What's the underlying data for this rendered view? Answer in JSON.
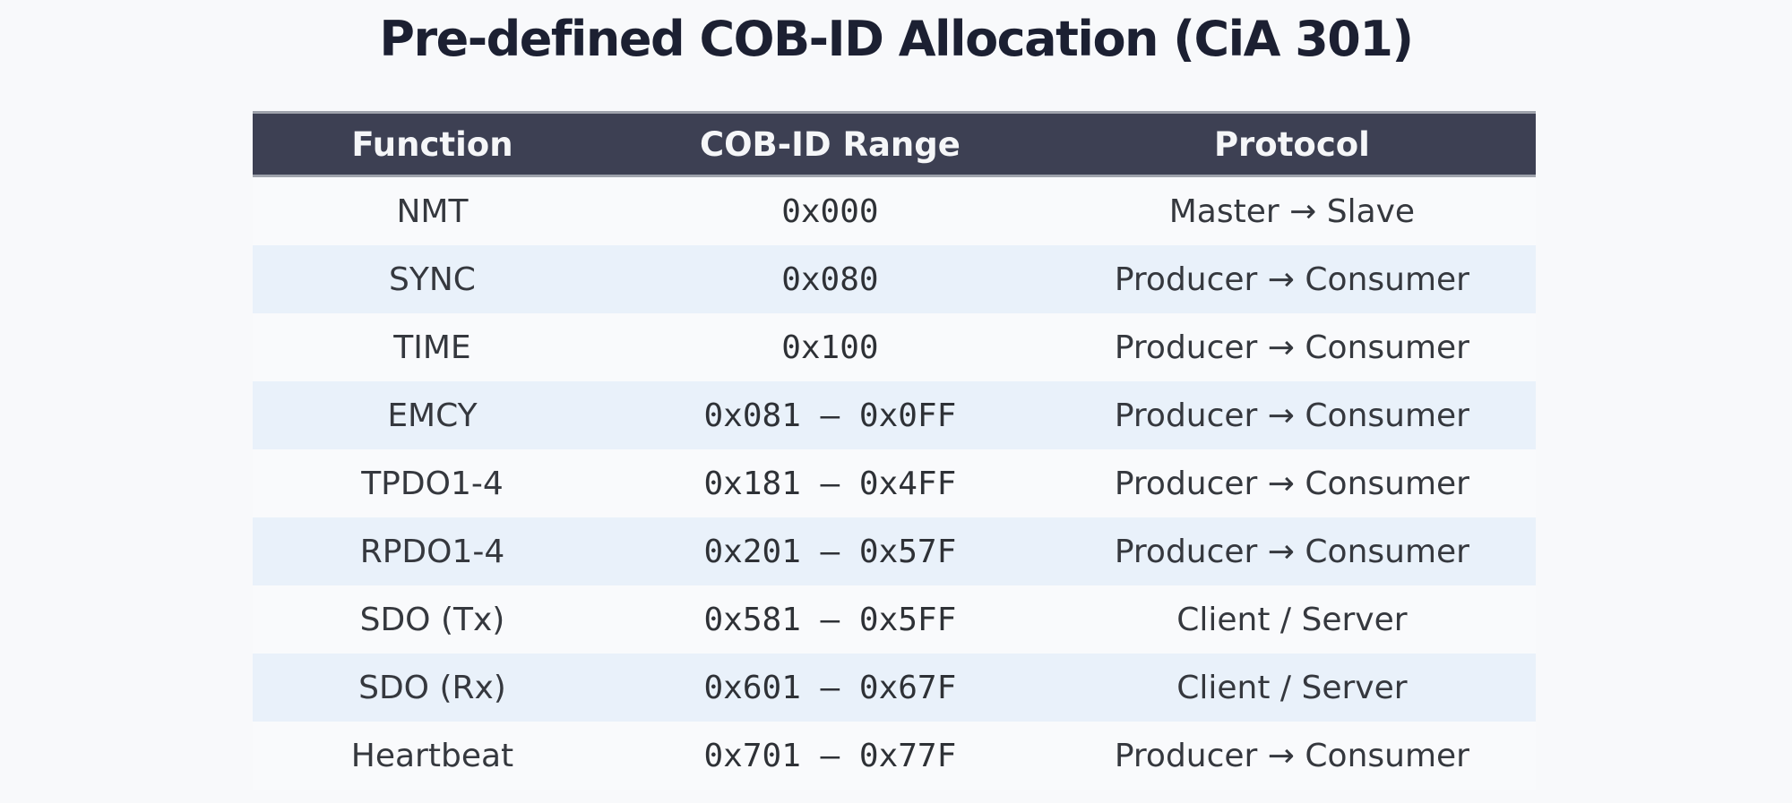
{
  "title": "Pre-defined COB-ID Allocation (CiA 301)",
  "style": {
    "page_bg": "#f8f9fb",
    "title_color": "#1c2032",
    "header_bg": "#3d4053",
    "header_text": "#f5f6f8",
    "header_border": "#9fa3ac",
    "row_bg": "#f9fafc",
    "row_alt_bg": "#e9f1fa",
    "body_text": "#35383e",
    "mono_text": "#2e3136"
  },
  "chart_data": {
    "type": "table",
    "title": "Pre-defined COB-ID Allocation (CiA 301)",
    "columns": [
      "Function",
      "COB-ID Range",
      "Protocol"
    ],
    "rows": [
      [
        "NMT",
        "0x000",
        "Master → Slave"
      ],
      [
        "SYNC",
        "0x080",
        "Producer → Consumer"
      ],
      [
        "TIME",
        "0x100",
        "Producer → Consumer"
      ],
      [
        "EMCY",
        "0x081 — 0x0FF",
        "Producer → Consumer"
      ],
      [
        "TPDO1-4",
        "0x181 — 0x4FF",
        "Producer → Consumer"
      ],
      [
        "RPDO1-4",
        "0x201 — 0x57F",
        "Producer → Consumer"
      ],
      [
        "SDO (Tx)",
        "0x581 — 0x5FF",
        "Client / Server"
      ],
      [
        "SDO (Rx)",
        "0x601 — 0x67F",
        "Client / Server"
      ],
      [
        "Heartbeat",
        "0x701 — 0x77F",
        "Producer → Consumer"
      ]
    ],
    "layout": {
      "striped": true,
      "stripe_pattern": "even rows light, odd rows pale blue",
      "column_align": [
        "center",
        "center",
        "center"
      ],
      "cobid_column_font": "monospace",
      "legend": "none",
      "grid": "none"
    }
  }
}
